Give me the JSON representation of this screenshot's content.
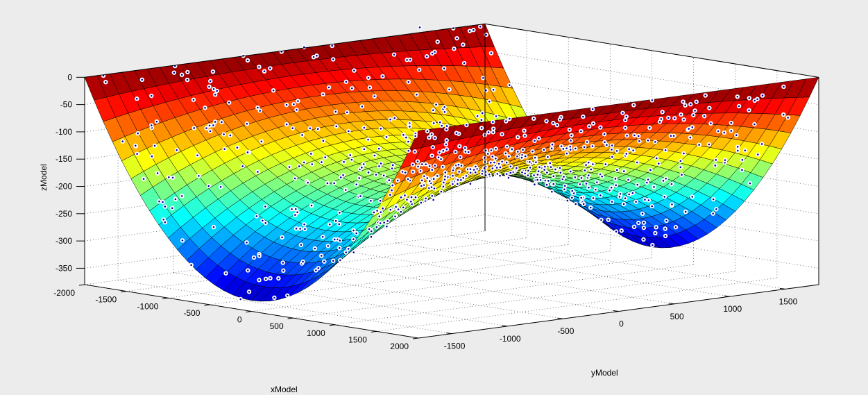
{
  "chart_data": {
    "type": "surface3d",
    "title": "",
    "xlabel": "xModel",
    "ylabel": "yModel",
    "zlabel": "zModel",
    "xlim": [
      -2000,
      2000
    ],
    "ylim": [
      -1800,
      1800
    ],
    "zlim": [
      -380,
      0
    ],
    "xticks": [
      -2000,
      -1500,
      -1000,
      -500,
      0,
      500,
      1000,
      1500,
      2000
    ],
    "yticks": [
      -1500,
      -1000,
      -500,
      0,
      500,
      1000,
      1500
    ],
    "zticks": [
      0,
      -50,
      -100,
      -150,
      -200,
      -250,
      -300,
      -350
    ],
    "grid": true,
    "colormap": "jet",
    "surface_model": "z = -360*(1-(x/2000)^2)*(0.5+0.5*(y/1800)^2)",
    "scatter_marker": "white circle with blue dot",
    "colors": {
      "background": "#ececec",
      "axes": "#ffffff",
      "marker_face": "#ffffff",
      "marker_dot": "#0000aa"
    }
  }
}
